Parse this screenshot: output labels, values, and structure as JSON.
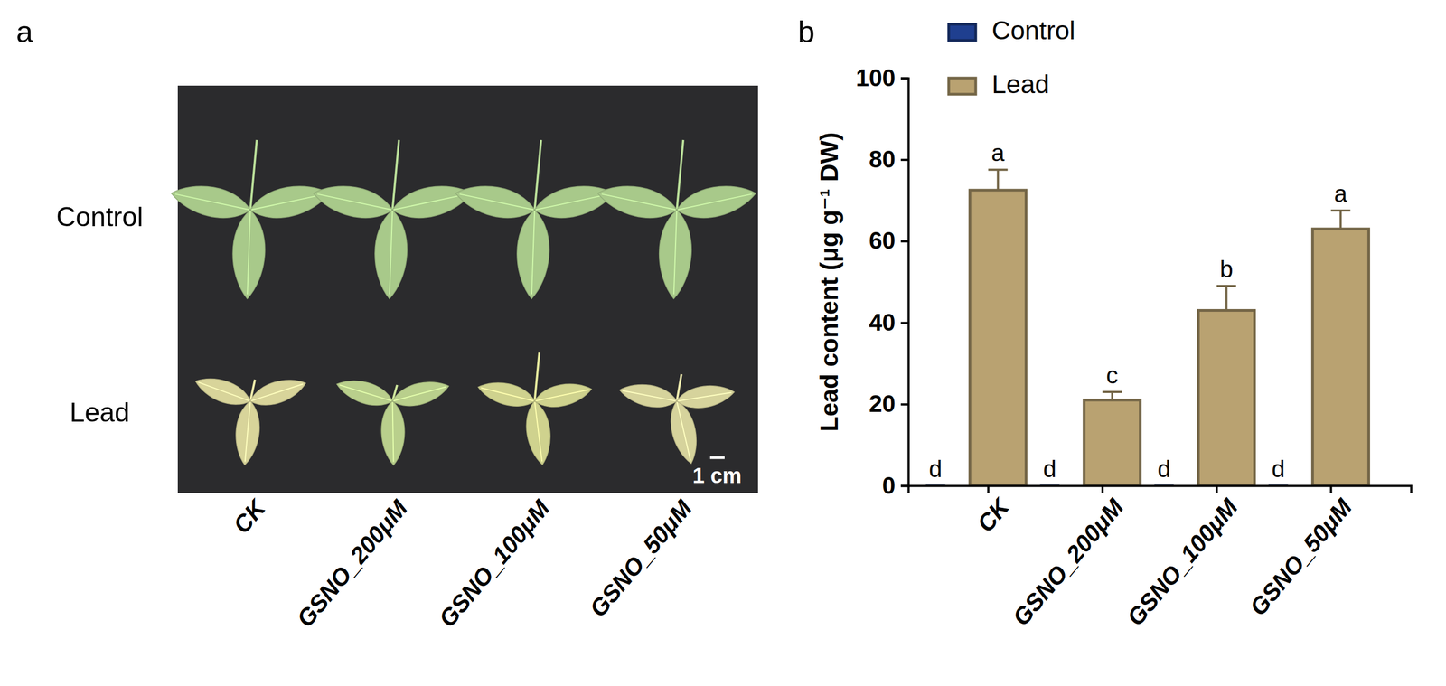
{
  "panel_a": {
    "panel_label": "a",
    "row_labels": [
      "Control",
      "Lead"
    ],
    "column_labels": [
      "CK",
      "GSNO_200μM",
      "GSNO_100μM",
      "GSNO_50μM"
    ],
    "scale_bar": "1 cm"
  },
  "chart_data": {
    "type": "bar",
    "panel_label": "b",
    "y_label": "Lead content (μg g⁻¹ DW)",
    "categories": [
      "CK",
      "GSNO_200μM",
      "GSNO_100μM",
      "GSNO_50μM"
    ],
    "series": [
      {
        "name": "Control",
        "color": "#1f3f8f",
        "values": [
          0,
          0,
          0,
          0
        ],
        "errors": [
          0,
          0,
          0,
          0
        ],
        "letters": [
          "d",
          "d",
          "d",
          "d"
        ]
      },
      {
        "name": "Lead",
        "color": "#b9a271",
        "values": [
          72.5,
          21,
          43,
          63
        ],
        "errors": [
          5,
          2,
          6,
          4.5
        ],
        "letters": [
          "a",
          "c",
          "b",
          "a"
        ]
      }
    ],
    "ylim": [
      0,
      100
    ],
    "yticks": [
      0,
      20,
      40,
      60,
      80,
      100
    ],
    "legend": "top-left"
  }
}
